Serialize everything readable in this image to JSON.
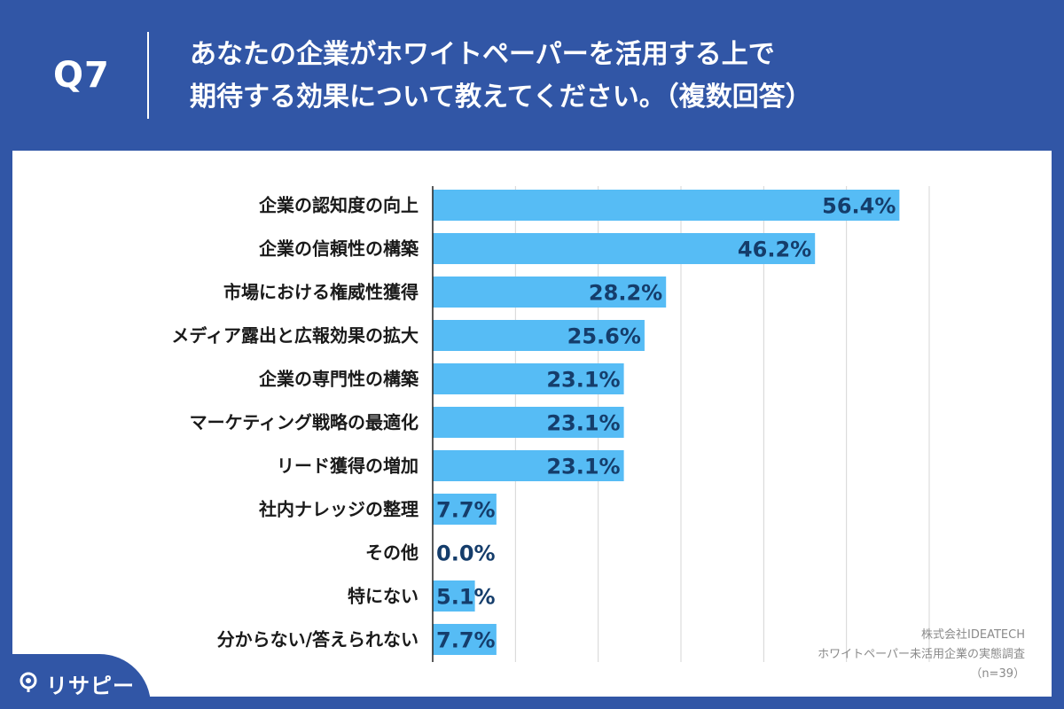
{
  "header": {
    "question_number": "Q7",
    "title_line1": "あなたの企業がホワイトペーパーを活用する上で",
    "title_line2": "期待する効果について教えてください。（複数回答）"
  },
  "chart_data": {
    "type": "bar",
    "orientation": "horizontal",
    "categories": [
      "企業の認知度の向上",
      "企業の信頼性の構築",
      "市場における権威性獲得",
      "メディア露出と広報効果の拡大",
      "企業の専門性の構築",
      "マーケティング戦略の最適化",
      "リード獲得の増加",
      "社内ナレッジの整理",
      "その他",
      "特にない",
      "分からない/答えられない"
    ],
    "values": [
      56.4,
      46.2,
      28.2,
      25.6,
      23.1,
      23.1,
      23.1,
      7.7,
      0.0,
      5.1,
      7.7
    ],
    "value_labels": [
      "56.4%",
      "46.2%",
      "28.2%",
      "25.6%",
      "23.1%",
      "23.1%",
      "23.1%",
      "7.7%",
      "0.0%",
      "5.1%",
      "7.7%"
    ],
    "xlim": [
      0,
      60
    ],
    "grid": true,
    "bar_color": "#56bcf5"
  },
  "credit": {
    "company": "株式会社IDEATECH",
    "survey": "ホワイトペーパー未活用企業の実態調査",
    "sample": "（n=39）"
  },
  "brand": {
    "logo_text": "リサピー",
    "logo_icon": "pin-icon"
  }
}
